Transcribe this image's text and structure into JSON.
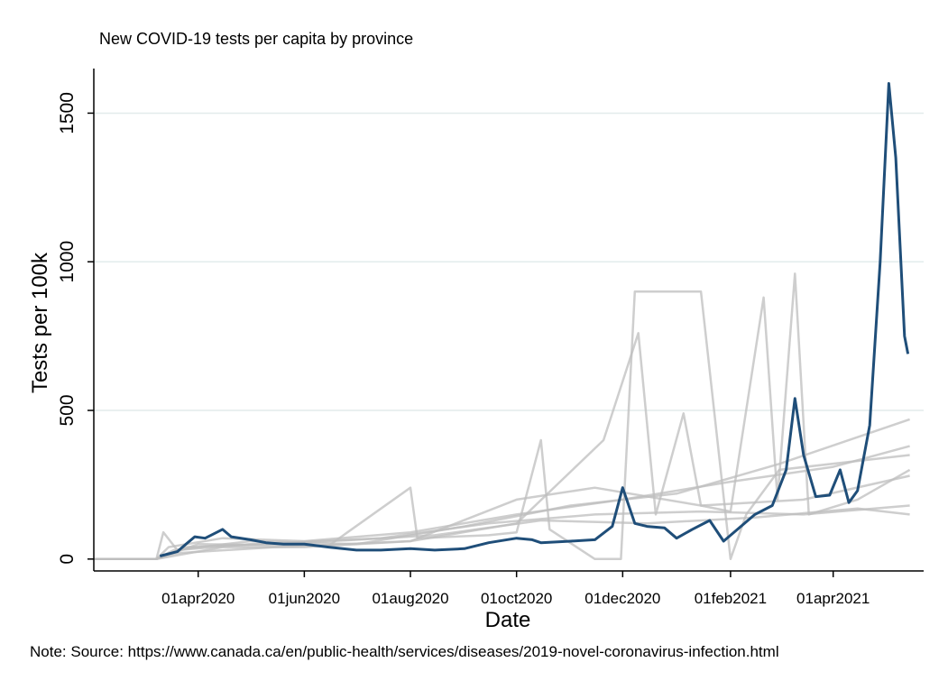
{
  "chart_data": {
    "type": "line",
    "title": "New COVID-19 tests per capita by province",
    "xlabel": "Date",
    "ylabel": "Tests per 100k",
    "note": "Note: Source: https://www.canada.ca/en/public-health/services/diseases/2019-novel-coronavirus-infection.html",
    "x_ticks": [
      "2020-04-01",
      "2020-06-01",
      "2020-08-01",
      "2020-10-01",
      "2020-12-01",
      "2021-02-01",
      "2021-04-01"
    ],
    "x_tick_labels": [
      "01apr2020",
      "01jun2020",
      "01aug2020",
      "01oct2020",
      "01dec2020",
      "01feb2021",
      "01apr2021"
    ],
    "xlim": [
      "2020-02-01",
      "2021-05-23"
    ],
    "y_ticks": [
      0,
      500,
      1000,
      1500
    ],
    "ylim": [
      -40,
      1650
    ],
    "grid": true,
    "colors": {
      "highlight": "#1f4e79",
      "background_series": "#bdbdbd",
      "grid": "#e3ecec"
    },
    "highlight_series": {
      "points": [
        [
          "2020-03-10",
          10
        ],
        [
          "2020-03-20",
          25
        ],
        [
          "2020-03-25",
          50
        ],
        [
          "2020-03-30",
          75
        ],
        [
          "2020-04-05",
          70
        ],
        [
          "2020-04-10",
          85
        ],
        [
          "2020-04-15",
          100
        ],
        [
          "2020-04-20",
          75
        ],
        [
          "2020-05-01",
          65
        ],
        [
          "2020-05-10",
          55
        ],
        [
          "2020-05-20",
          50
        ],
        [
          "2020-06-01",
          50
        ],
        [
          "2020-06-15",
          40
        ],
        [
          "2020-07-01",
          30
        ],
        [
          "2020-07-15",
          30
        ],
        [
          "2020-08-01",
          35
        ],
        [
          "2020-08-15",
          30
        ],
        [
          "2020-09-01",
          35
        ],
        [
          "2020-09-15",
          55
        ],
        [
          "2020-10-01",
          70
        ],
        [
          "2020-10-10",
          65
        ],
        [
          "2020-10-15",
          55
        ],
        [
          "2020-11-01",
          60
        ],
        [
          "2020-11-15",
          65
        ],
        [
          "2020-11-25",
          110
        ],
        [
          "2020-12-01",
          240
        ],
        [
          "2020-12-08",
          120
        ],
        [
          "2020-12-15",
          110
        ],
        [
          "2020-12-25",
          105
        ],
        [
          "2021-01-01",
          70
        ],
        [
          "2021-01-10",
          100
        ],
        [
          "2021-01-20",
          130
        ],
        [
          "2021-01-28",
          60
        ],
        [
          "2021-02-05",
          100
        ],
        [
          "2021-02-15",
          150
        ],
        [
          "2021-02-25",
          180
        ],
        [
          "2021-03-05",
          300
        ],
        [
          "2021-03-10",
          540
        ],
        [
          "2021-03-15",
          350
        ],
        [
          "2021-03-22",
          210
        ],
        [
          "2021-03-30",
          215
        ],
        [
          "2021-04-05",
          300
        ],
        [
          "2021-04-10",
          190
        ],
        [
          "2021-04-15",
          230
        ],
        [
          "2021-04-22",
          450
        ],
        [
          "2021-04-28",
          1000
        ],
        [
          "2021-05-03",
          1600
        ],
        [
          "2021-05-07",
          1350
        ],
        [
          "2021-05-12",
          750
        ],
        [
          "2021-05-14",
          690
        ]
      ]
    },
    "background_series": [
      {
        "points": [
          [
            "2020-02-01",
            0
          ],
          [
            "2020-03-08",
            0
          ],
          [
            "2020-03-15",
            40
          ],
          [
            "2020-04-15",
            70
          ],
          [
            "2020-06-01",
            60
          ],
          [
            "2020-08-01",
            90
          ],
          [
            "2020-10-01",
            150
          ],
          [
            "2020-12-01",
            200
          ],
          [
            "2021-02-01",
            260
          ],
          [
            "2021-04-01",
            310
          ],
          [
            "2021-05-15",
            380
          ]
        ]
      },
      {
        "points": [
          [
            "2020-02-01",
            0
          ],
          [
            "2020-03-08",
            0
          ],
          [
            "2020-03-18",
            30
          ],
          [
            "2020-05-01",
            60
          ],
          [
            "2020-07-01",
            50
          ],
          [
            "2020-09-01",
            110
          ],
          [
            "2020-11-01",
            180
          ],
          [
            "2021-01-01",
            220
          ],
          [
            "2021-03-01",
            320
          ],
          [
            "2021-05-15",
            470
          ]
        ]
      },
      {
        "points": [
          [
            "2020-02-01",
            0
          ],
          [
            "2020-03-08",
            0
          ],
          [
            "2020-03-20",
            20
          ],
          [
            "2020-05-15",
            40
          ],
          [
            "2020-08-01",
            60
          ],
          [
            "2020-10-01",
            200
          ],
          [
            "2020-11-15",
            240
          ],
          [
            "2021-01-15",
            180
          ],
          [
            "2021-03-15",
            200
          ],
          [
            "2021-05-15",
            280
          ]
        ]
      },
      {
        "points": [
          [
            "2020-02-01",
            0
          ],
          [
            "2020-03-08",
            0
          ],
          [
            "2020-03-12",
            90
          ],
          [
            "2020-03-20",
            30
          ],
          [
            "2020-05-01",
            50
          ],
          [
            "2020-07-15",
            70
          ],
          [
            "2020-09-15",
            120
          ],
          [
            "2020-11-15",
            150
          ],
          [
            "2021-01-15",
            160
          ],
          [
            "2021-03-15",
            150
          ],
          [
            "2021-05-15",
            180
          ]
        ]
      },
      {
        "points": [
          [
            "2020-02-01",
            0
          ],
          [
            "2020-03-08",
            0
          ],
          [
            "2020-03-25",
            40
          ],
          [
            "2020-06-01",
            55
          ],
          [
            "2020-08-15",
            80
          ],
          [
            "2020-10-15",
            130
          ],
          [
            "2020-12-15",
            120
          ],
          [
            "2021-02-15",
            140
          ],
          [
            "2021-04-15",
            170
          ],
          [
            "2021-05-15",
            150
          ]
        ]
      },
      {
        "points": [
          [
            "2020-02-01",
            0
          ],
          [
            "2020-03-08",
            0
          ],
          [
            "2020-04-01",
            50
          ],
          [
            "2020-06-15",
            45
          ],
          [
            "2020-08-01",
            240
          ],
          [
            "2020-08-05",
            70
          ],
          [
            "2020-09-15",
            80
          ],
          [
            "2020-10-01",
            90
          ],
          [
            "2020-10-15",
            400
          ],
          [
            "2020-10-20",
            100
          ],
          [
            "2020-11-15",
            0
          ],
          [
            "2020-11-30",
            0
          ],
          [
            "2020-12-08",
            900
          ],
          [
            "2021-01-15",
            900
          ],
          [
            "2021-02-01",
            0
          ],
          [
            "2021-02-10",
            150
          ],
          [
            "2021-03-01",
            300
          ],
          [
            "2021-05-15",
            350
          ]
        ]
      },
      {
        "points": [
          [
            "2020-02-01",
            0
          ],
          [
            "2020-03-08",
            0
          ],
          [
            "2020-04-15",
            40
          ],
          [
            "2020-06-01",
            40
          ],
          [
            "2020-08-01",
            60
          ],
          [
            "2020-10-01",
            120
          ],
          [
            "2020-11-20",
            400
          ],
          [
            "2020-12-10",
            760
          ],
          [
            "2020-12-20",
            150
          ],
          [
            "2021-01-05",
            490
          ],
          [
            "2021-01-15",
            180
          ],
          [
            "2021-02-01",
            160
          ],
          [
            "2021-02-20",
            880
          ],
          [
            "2021-02-28",
            200
          ],
          [
            "2021-03-10",
            960
          ],
          [
            "2021-03-18",
            150
          ],
          [
            "2021-04-15",
            200
          ],
          [
            "2021-05-15",
            300
          ]
        ]
      }
    ]
  }
}
